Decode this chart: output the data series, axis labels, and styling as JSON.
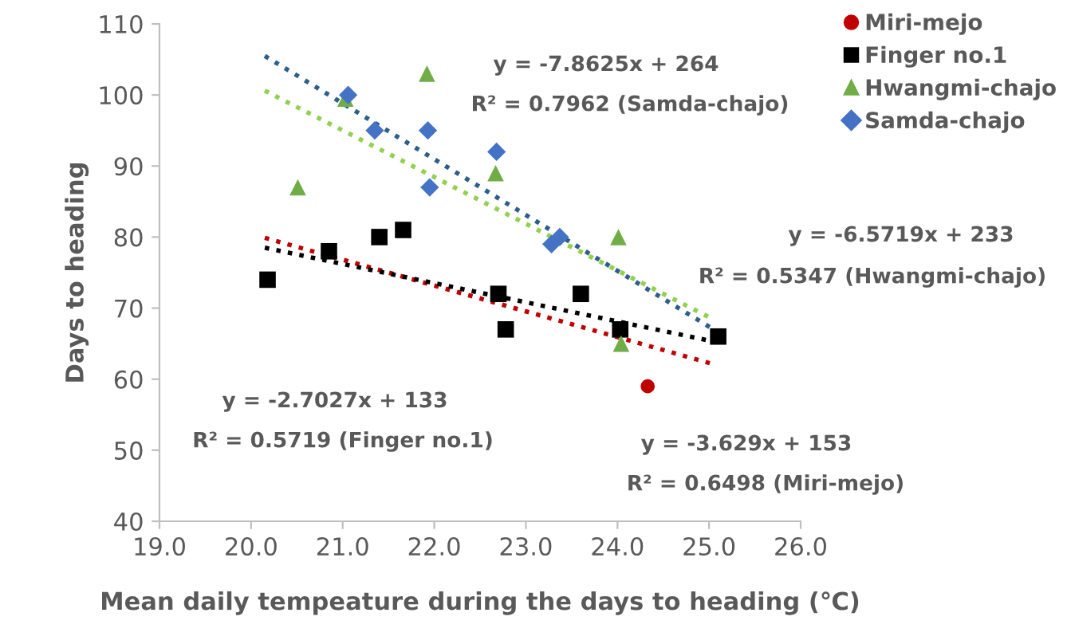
{
  "chart_data": {
    "type": "scatter",
    "xlabel": "Mean daily tempeature during the days to heading (℃)",
    "ylabel": "Days to heading",
    "xlim": [
      19,
      26
    ],
    "xticks": [
      {
        "value": 19,
        "label": "19.0"
      },
      {
        "value": 20,
        "label": "20.0"
      },
      {
        "value": 21,
        "label": "21.0"
      },
      {
        "value": 22,
        "label": "22.0"
      },
      {
        "value": 23,
        "label": "23.0"
      },
      {
        "value": 24,
        "label": "24.0"
      },
      {
        "value": 25,
        "label": "25.0"
      },
      {
        "value": 26,
        "label": "26.0"
      }
    ],
    "ylim": [
      40,
      110
    ],
    "yticks": [
      40,
      50,
      60,
      70,
      80,
      90,
      100,
      110
    ],
    "grid": false,
    "legend": "top right",
    "series": [
      {
        "name": "Miri-mejo",
        "color": "#c00000",
        "marker": "circle",
        "x": [
          24.33
        ],
        "values": [
          59
        ]
      },
      {
        "name": "Finger no.1",
        "color": "#000000",
        "marker": "square",
        "x": [
          20.18,
          20.85,
          21.4,
          21.66,
          22.7,
          22.78,
          23.6,
          24.03,
          25.1
        ],
        "values": [
          74,
          78,
          80,
          81,
          72,
          67,
          72,
          67,
          66
        ]
      },
      {
        "name": "Hwangmi-chajo",
        "color": "#70ad47",
        "marker": "triangle",
        "x": [
          20.51,
          21.03,
          21.92,
          22.67,
          24.01,
          24.04
        ],
        "values": [
          87,
          99.5,
          103,
          89,
          80,
          65
        ]
      },
      {
        "name": "Samda-chajo",
        "color": "#4472c4",
        "marker": "diamond",
        "x": [
          21.06,
          21.35,
          21.93,
          21.95,
          22.68,
          23.28,
          23.37
        ],
        "values": [
          100,
          95,
          95,
          87,
          92,
          79,
          80
        ]
      },
      {
        "type": "line",
        "color": "#c00000",
        "marker": "none",
        "line_style": "dotted",
        "x": [
          20.15,
          25.05
        ],
        "values": [
          79.9,
          62.1
        ]
      },
      {
        "type": "line",
        "color": "#000000",
        "marker": "none",
        "line_style": "dotted",
        "x": [
          20.15,
          25.05
        ],
        "values": [
          78.5,
          65.3
        ]
      },
      {
        "type": "line",
        "color": "#92d050",
        "marker": "none",
        "line_style": "dotted",
        "x": [
          20.15,
          25.05
        ],
        "values": [
          100.6,
          68.4
        ]
      },
      {
        "type": "line",
        "color": "#2e5f8a",
        "marker": "none",
        "line_style": "dotted",
        "x": [
          20.15,
          25.05
        ],
        "values": [
          105.5,
          67.0
        ]
      }
    ],
    "annotations": [
      "y = -7.8625x + 264",
      "R² = 0.7962 (Samda-chajo)",
      "y = -6.5719x + 233",
      "R² = 0.5347 (Hwangmi-chajo)",
      "y = -2.7027x + 133",
      "R² = 0.5719 (Finger no.1)",
      "y = -3.629x + 153",
      "R² = 0.6498 (Miri-mejo)"
    ]
  }
}
